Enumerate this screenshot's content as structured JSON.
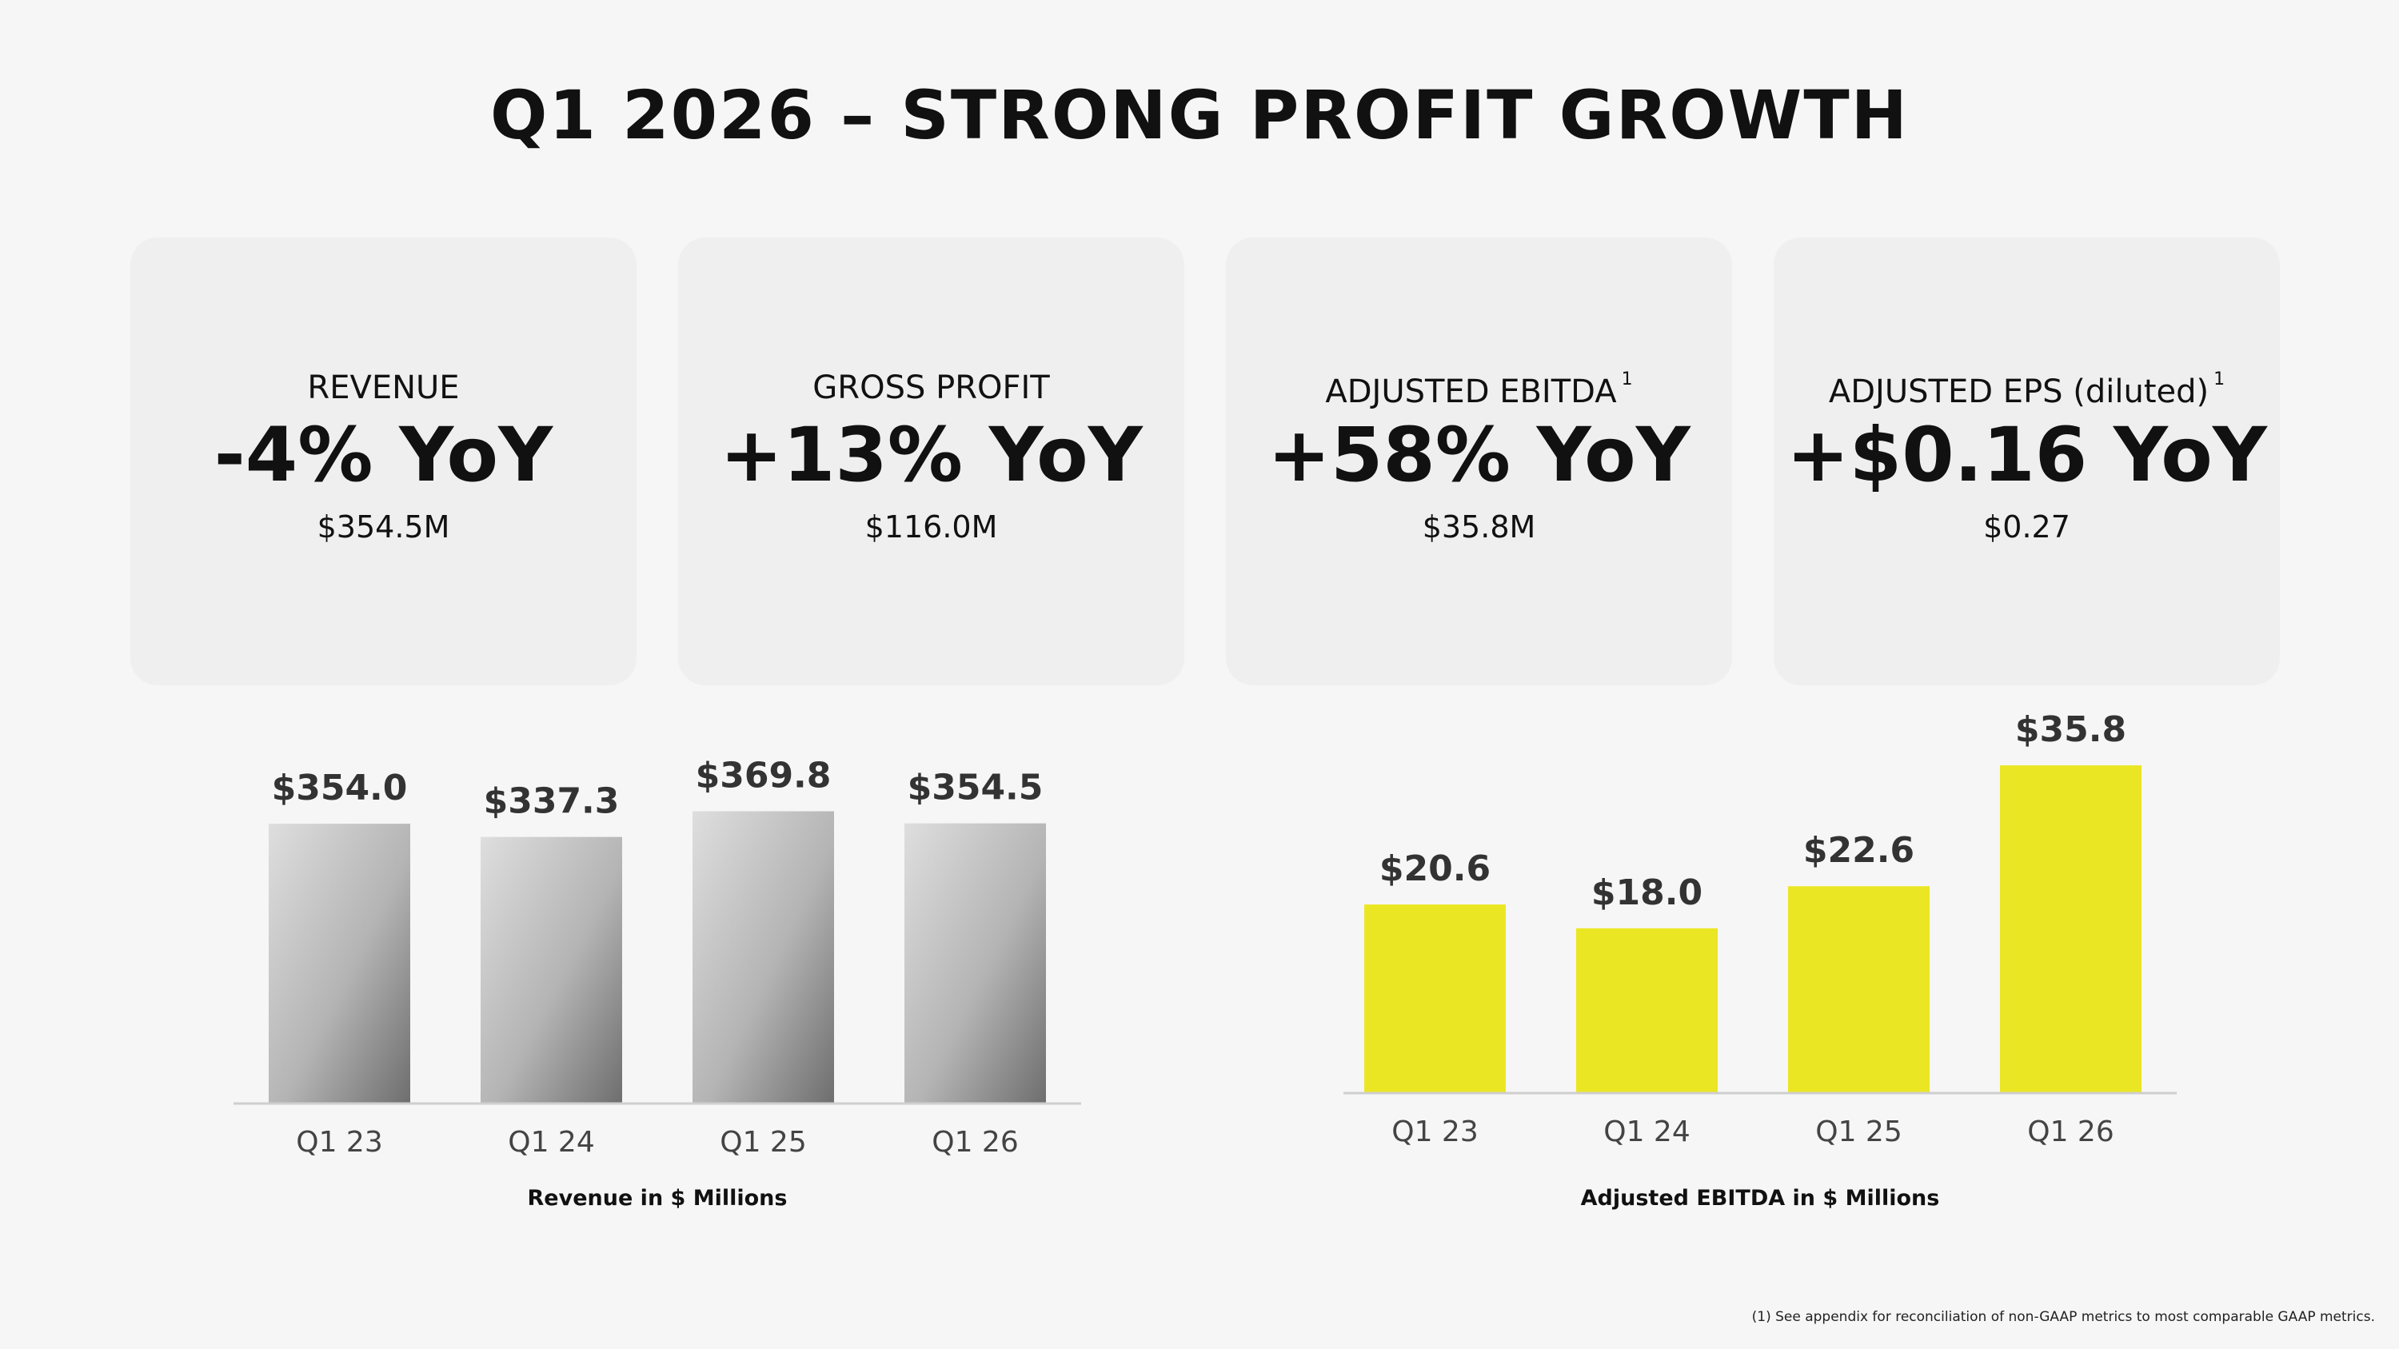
{
  "title": "Q1 2026 – STRONG PROFIT GROWTH",
  "cards": [
    {
      "label": "REVENUE",
      "sup": "",
      "big": "-4% YoY",
      "value": "$354.5M"
    },
    {
      "label": "GROSS PROFIT",
      "sup": "",
      "big": "+13% YoY",
      "value": "$116.0M"
    },
    {
      "label": "ADJUSTED EBITDA",
      "sup": "1",
      "big": "+58% YoY",
      "value": "$35.8M"
    },
    {
      "label": "ADJUSTED EPS (diluted)",
      "sup": "1",
      "big": "+$0.16 YoY",
      "value": "$0.27"
    }
  ],
  "chart_data": [
    {
      "type": "bar",
      "categories": [
        "Q1 23",
        "Q1 24",
        "Q1 25",
        "Q1 26"
      ],
      "values": [
        354.0,
        337.3,
        369.8,
        354.5
      ],
      "data_labels": [
        "$354.0",
        "$337.3",
        "$369.8",
        "$354.5"
      ],
      "xlabel": "Revenue in $ Millions",
      "color": "#a8a8a8"
    },
    {
      "type": "bar",
      "categories": [
        "Q1 23",
        "Q1 24",
        "Q1 25",
        "Q1 26"
      ],
      "values": [
        20.6,
        18.0,
        22.6,
        35.8
      ],
      "data_labels": [
        "$20.6",
        "$18.0",
        "$22.6",
        "$35.8"
      ],
      "xlabel": "Adjusted EBITDA in $ Millions",
      "color": "#ebe624"
    }
  ],
  "footnote": "(1) See appendix for reconciliation of non-GAAP metrics to most comparable GAAP metrics."
}
